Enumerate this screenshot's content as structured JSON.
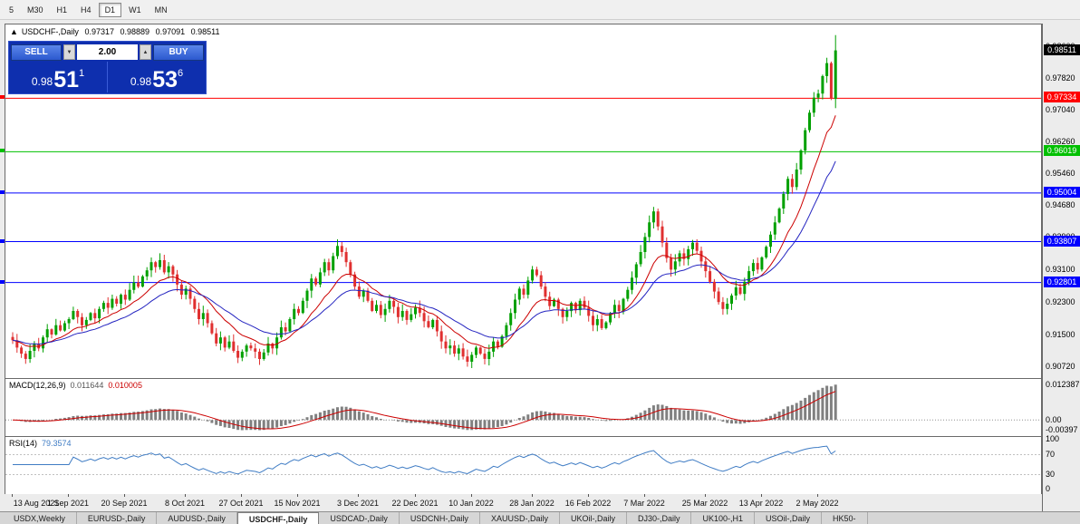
{
  "toolbar": {
    "timeframes": [
      {
        "label": "5",
        "active": false
      },
      {
        "label": "M30",
        "active": false
      },
      {
        "label": "H1",
        "active": false
      },
      {
        "label": "H4",
        "active": false
      },
      {
        "label": "D1",
        "active": true
      },
      {
        "label": "W1",
        "active": false
      },
      {
        "label": "MN",
        "active": false
      }
    ]
  },
  "colors": {
    "candle_up": "#00a000",
    "candle_down": "#e03030",
    "ma_fast": "#cc0000",
    "ma_slow": "#2424c0",
    "macd_hist": "#808080",
    "macd_signal": "#cc0000",
    "rsi_line": "#3f7cc4"
  },
  "chart": {
    "up_arrow_icon": "▲",
    "symbol": "USDCHF-,Daily",
    "ohlc": {
      "open": "0.97317",
      "high": "0.98889",
      "low": "0.97091",
      "close": "0.98511"
    },
    "y_min": 0.9045,
    "y_max": 0.9915,
    "axis_ticks": [
      "0.98600",
      "0.97820",
      "0.97040",
      "0.96260",
      "0.95460",
      "0.94680",
      "0.93900",
      "0.93100",
      "0.92300",
      "0.91500",
      "0.90720"
    ],
    "current_price": {
      "label": "0.98511",
      "value": 0.98511,
      "badge_bg": "#000000"
    },
    "levels": [
      {
        "label": "0.97334",
        "value": 0.97334,
        "color": "#ff0000"
      },
      {
        "label": "0.96019",
        "value": 0.96019,
        "color": "#00c000"
      },
      {
        "label": "0.95004",
        "value": 0.95004,
        "color": "#0000ff"
      },
      {
        "label": "0.93807",
        "value": 0.93807,
        "color": "#0000ff"
      },
      {
        "label": "0.92801",
        "value": 0.92801,
        "color": "#0000ff"
      }
    ],
    "date_ticks": [
      {
        "i": 0,
        "label": "13 Aug 2021"
      },
      {
        "i": 13,
        "label": "1 Sep 2021"
      },
      {
        "i": 26,
        "label": "20 Sep 2021"
      },
      {
        "i": 40,
        "label": "8 Oct 2021"
      },
      {
        "i": 53,
        "label": "27 Oct 2021"
      },
      {
        "i": 66,
        "label": "15 Nov 2021"
      },
      {
        "i": 80,
        "label": "3 Dec 2021"
      },
      {
        "i": 93,
        "label": "22 Dec 2021"
      },
      {
        "i": 106,
        "label": "10 Jan 2022"
      },
      {
        "i": 120,
        "label": "28 Jan 2022"
      },
      {
        "i": 133,
        "label": "16 Feb 2022"
      },
      {
        "i": 146,
        "label": "7 Mar 2022"
      },
      {
        "i": 160,
        "label": "25 Mar 2022"
      },
      {
        "i": 173,
        "label": "13 Apr 2022"
      },
      {
        "i": 186,
        "label": "2 May 2022"
      }
    ],
    "closes_x10000": [
      9138,
      9120,
      9105,
      9092,
      9112,
      9130,
      9118,
      9145,
      9165,
      9152,
      9175,
      9162,
      9180,
      9190,
      9210,
      9195,
      9175,
      9188,
      9205,
      9192,
      9215,
      9230,
      9218,
      9240,
      9228,
      9250,
      9238,
      9262,
      9280,
      9270,
      9295,
      9310,
      9330,
      9318,
      9335,
      9305,
      9320,
      9300,
      9275,
      9250,
      9265,
      9240,
      9215,
      9190,
      9205,
      9180,
      9155,
      9130,
      9145,
      9120,
      9135,
      9112,
      9095,
      9110,
      9125,
      9118,
      9110,
      9092,
      9108,
      9130,
      9118,
      9145,
      9170,
      9160,
      9190,
      9215,
      9205,
      9235,
      9260,
      9290,
      9275,
      9305,
      9330,
      9310,
      9345,
      9370,
      9355,
      9330,
      9300,
      9270,
      9245,
      9260,
      9235,
      9210,
      9225,
      9200,
      9215,
      9235,
      9220,
      9195,
      9210,
      9188,
      9202,
      9218,
      9205,
      9185,
      9170,
      9188,
      9160,
      9135,
      9118,
      9125,
      9105,
      9118,
      9098,
      9085,
      9102,
      9120,
      9105,
      9092,
      9110,
      9135,
      9122,
      9148,
      9175,
      9205,
      9238,
      9265,
      9250,
      9285,
      9312,
      9298,
      9270,
      9245,
      9222,
      9238,
      9215,
      9195,
      9210,
      9230,
      9212,
      9235,
      9218,
      9198,
      9175,
      9190,
      9168,
      9182,
      9205,
      9225,
      9210,
      9240,
      9262,
      9292,
      9325,
      9355,
      9392,
      9428,
      9455,
      9418,
      9378,
      9340,
      9312,
      9332,
      9352,
      9338,
      9362,
      9378,
      9358,
      9332,
      9308,
      9282,
      9258,
      9232,
      9215,
      9228,
      9248,
      9268,
      9252,
      9282,
      9308,
      9328,
      9312,
      9342,
      9368,
      9398,
      9428,
      9462,
      9498,
      9535,
      9515,
      9558,
      9605,
      9655,
      9698,
      9735,
      9745,
      9788,
      9820,
      9732,
      9851
    ],
    "last_bar": {
      "o": 0.97317,
      "h": 0.98889,
      "l": 0.97091,
      "c": 0.98511
    }
  },
  "trade_panel": {
    "sell": {
      "label": "SELL",
      "price_prefix": "0.98",
      "price_big": "51",
      "price_sup": "1"
    },
    "buy": {
      "label": "BUY",
      "price_prefix": "0.98",
      "price_big": "53",
      "price_sup": "6"
    },
    "volume": "2.00",
    "spin_down_icon": "▼",
    "spin_up_icon": "▲"
  },
  "macd": {
    "title": "MACD(12,26,9)",
    "value_main": "0.011644",
    "value_signal": "0.010005",
    "axis": {
      "top": "0.012387",
      "zero": "0.00",
      "bottom": "-0.00397"
    }
  },
  "rsi": {
    "title": "RSI(14)",
    "value": "79.3574",
    "axis": [
      "100",
      "70",
      "30",
      "0"
    ],
    "levels": [
      70,
      30
    ]
  },
  "tabs": [
    {
      "label": "USDX,Weekly",
      "active": false
    },
    {
      "label": "EURUSD-,Daily",
      "active": false
    },
    {
      "label": "AUDUSD-,Daily",
      "active": false
    },
    {
      "label": "USDCHF-,Daily",
      "active": true
    },
    {
      "label": "USDCAD-,Daily",
      "active": false
    },
    {
      "label": "USDCNH-,Daily",
      "active": false
    },
    {
      "label": "XAUUSD-,Daily",
      "active": false
    },
    {
      "label": "UKOil-,Daily",
      "active": false
    },
    {
      "label": "DJ30-,Daily",
      "active": false
    },
    {
      "label": "UK100-,H1",
      "active": false
    },
    {
      "label": "USOil-,Daily",
      "active": false
    },
    {
      "label": "HK50-",
      "active": false
    }
  ]
}
